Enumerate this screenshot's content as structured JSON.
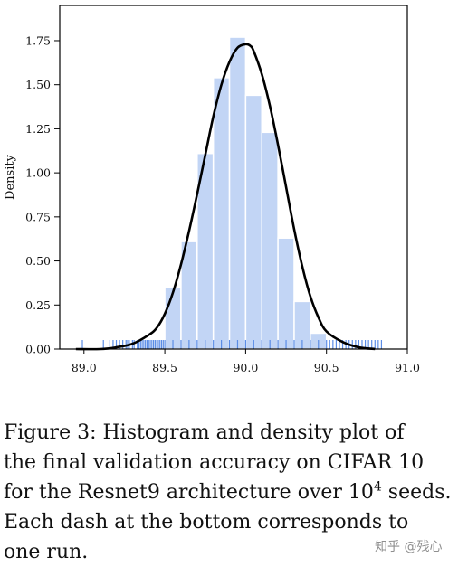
{
  "chart_data": {
    "type": "bar",
    "title": "",
    "xlabel": "",
    "ylabel": "Density",
    "xlim": [
      88.85,
      91.0
    ],
    "ylim": [
      0,
      1.95
    ],
    "xticks": [
      89.0,
      89.5,
      90.0,
      90.5,
      91.0
    ],
    "xtick_labels": [
      "89.0",
      "89.5",
      "90.0",
      "90.5",
      "91.0"
    ],
    "yticks": [
      0.0,
      0.25,
      0.5,
      0.75,
      1.0,
      1.25,
      1.5,
      1.75
    ],
    "ytick_labels": [
      "0.00",
      "0.25",
      "0.50",
      "0.75",
      "1.00",
      "1.25",
      "1.50",
      "1.75"
    ],
    "grid": false,
    "histogram": {
      "bin_edges": [
        89.5,
        89.6,
        89.7,
        89.8,
        89.9,
        90.0,
        90.1,
        90.2,
        90.3,
        90.4,
        90.5
      ],
      "values": [
        0.35,
        0.61,
        1.11,
        1.54,
        1.77,
        1.44,
        1.23,
        0.63,
        0.27,
        0.09
      ],
      "color": "#c2d5f5"
    },
    "density_curve": {
      "x": [
        88.95,
        89.1,
        89.2,
        89.3,
        89.4,
        89.45,
        89.5,
        89.55,
        89.6,
        89.65,
        89.7,
        89.75,
        89.8,
        89.85,
        89.9,
        89.95,
        90.0,
        90.03,
        90.05,
        90.1,
        90.15,
        90.2,
        90.25,
        90.3,
        90.35,
        90.4,
        90.45,
        90.5,
        90.6,
        90.7,
        90.8
      ],
      "y": [
        0.0,
        0.0,
        0.01,
        0.03,
        0.08,
        0.12,
        0.2,
        0.32,
        0.48,
        0.67,
        0.88,
        1.1,
        1.32,
        1.5,
        1.63,
        1.71,
        1.73,
        1.72,
        1.69,
        1.56,
        1.38,
        1.16,
        0.92,
        0.68,
        0.47,
        0.3,
        0.18,
        0.1,
        0.04,
        0.01,
        0.0
      ],
      "color": "#000000"
    },
    "rug": {
      "x": [
        88.99,
        89.12,
        89.16,
        89.18,
        89.2,
        89.22,
        89.24,
        89.26,
        89.27,
        89.28,
        89.3,
        89.31,
        89.33,
        89.34,
        89.35,
        89.36,
        89.37,
        89.38,
        89.39,
        89.4,
        89.41,
        89.42,
        89.43,
        89.44,
        89.45,
        89.46,
        89.47,
        89.48,
        89.49,
        89.5,
        89.55,
        89.6,
        89.65,
        89.7,
        89.75,
        89.8,
        89.85,
        89.9,
        89.95,
        90.0,
        90.05,
        90.1,
        90.15,
        90.2,
        90.25,
        90.3,
        90.35,
        90.4,
        90.45,
        90.5,
        90.52,
        90.54,
        90.56,
        90.58,
        90.6,
        90.62,
        90.64,
        90.66,
        90.68,
        90.7,
        90.72,
        90.74,
        90.76,
        90.78,
        90.8,
        90.82,
        90.84
      ],
      "color": "#5b8de6"
    }
  },
  "caption": {
    "line1": "Figure 3:  Histogram and density plot of",
    "line2": "the final validation accuracy on CIFAR 10",
    "line3_a": "for the Resnet9 architecture over 10",
    "line3_sup": "4",
    "line3_b": " seeds.",
    "line4": "Each dash at the bottom corresponds to",
    "line5": "one run."
  },
  "watermark": "知乎 @残心"
}
